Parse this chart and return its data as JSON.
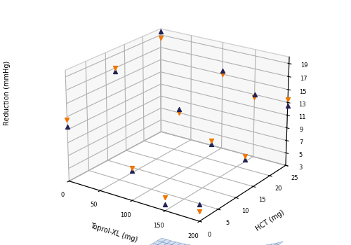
{
  "ylabel": "Reduction (mmHg)",
  "xlabel": "Toprol-XL (mg)",
  "hct_label": "HCT (mg)",
  "toprol_ticks": [
    0,
    50,
    100,
    150,
    200
  ],
  "hct_ticks": [
    0,
    5,
    10,
    15,
    20,
    25
  ],
  "z_ticks": [
    3,
    5,
    7,
    9,
    11,
    13,
    15,
    17,
    19
  ],
  "coef_intercept": -5.34392,
  "coef_toprol": -0.06023,
  "coef_hct": -0.34772,
  "coef_toprol2": 0.00015,
  "coef_hct2": 0.00703,
  "surface_facecolor": "#c8d8ee",
  "surface_edgecolor": "#6688bb",
  "surface_alpha": 0.75,
  "scatter_points": [
    {
      "toprol": 0,
      "hct": 0,
      "obs1": 5.5,
      "obs2": 4.5
    },
    {
      "toprol": 0,
      "hct": 12.5,
      "obs1": 8.0,
      "obs2": 8.5
    },
    {
      "toprol": 0,
      "hct": 25,
      "obs1": 12.5,
      "obs2": 13.5
    },
    {
      "toprol": 50,
      "hct": 0,
      "obs1": 4.0,
      "obs2": 5.0
    },
    {
      "toprol": 50,
      "hct": 12.5,
      "obs1": 9.0,
      "obs2": 9.5
    },
    {
      "toprol": 50,
      "hct": 25,
      "obs1": 13.0,
      "obs2": 12.5
    },
    {
      "toprol": 100,
      "hct": 0,
      "obs1": 7.5,
      "obs2": 8.0
    },
    {
      "toprol": 100,
      "hct": 12.5,
      "obs1": 13.0,
      "obs2": 12.5
    },
    {
      "toprol": 100,
      "hct": 25,
      "obs1": 15.5,
      "obs2": 15.0
    },
    {
      "toprol": 200,
      "hct": 0,
      "obs1": 11.5,
      "obs2": 12.5
    },
    {
      "toprol": 200,
      "hct": 12.5,
      "obs1": 16.5,
      "obs2": 17.0
    },
    {
      "toprol": 200,
      "hct": 25,
      "obs1": 19.5,
      "obs2": 18.5
    }
  ],
  "elev": 22,
  "azim": -55,
  "figsize": [
    5.0,
    3.5
  ],
  "dpi": 100
}
